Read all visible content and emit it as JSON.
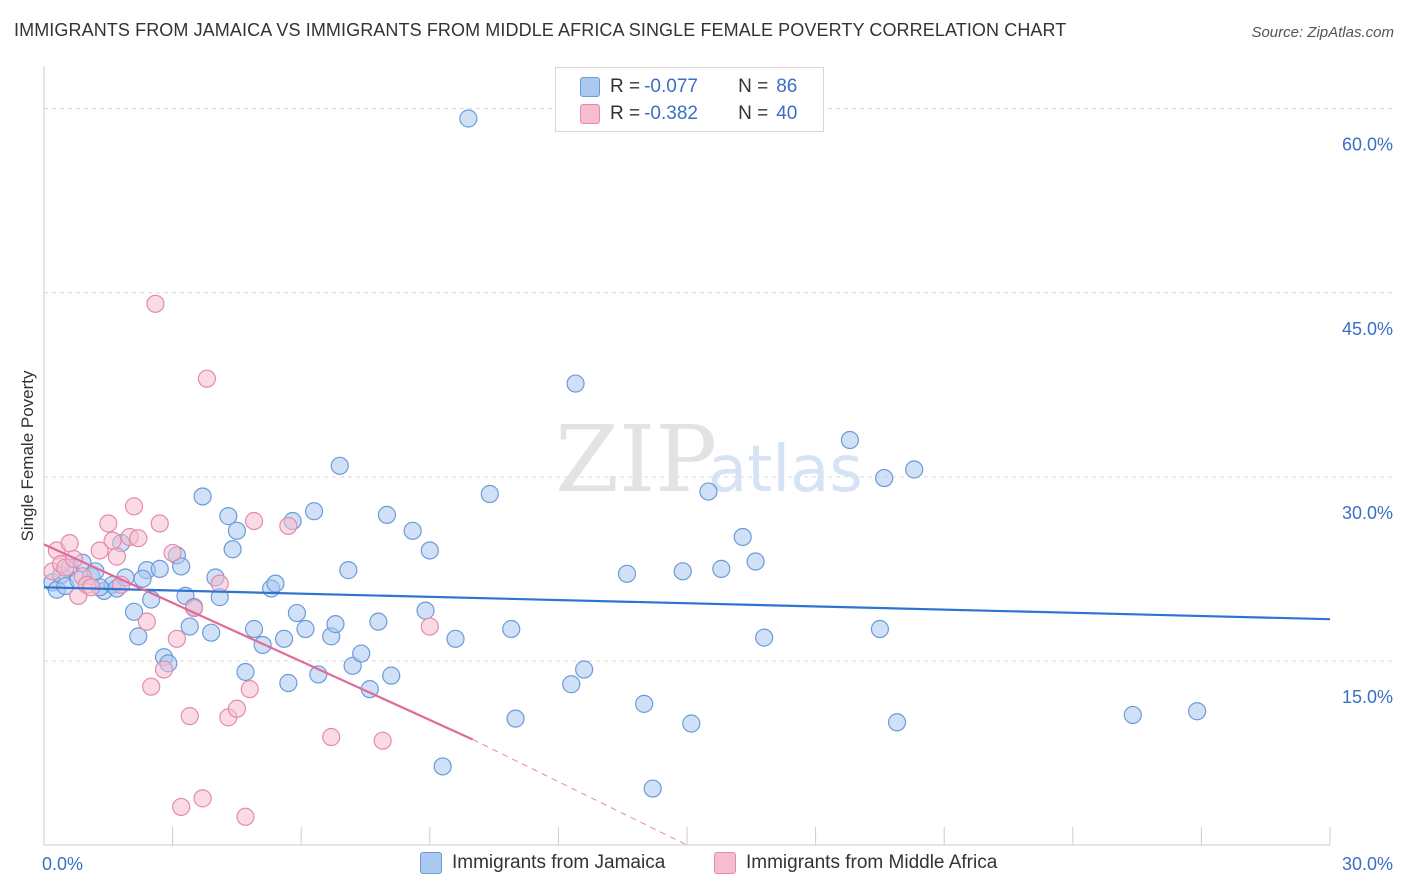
{
  "title": "IMMIGRANTS FROM JAMAICA VS IMMIGRANTS FROM MIDDLE AFRICA SINGLE FEMALE POVERTY CORRELATION CHART",
  "source": "Source: ZipAtlas.com",
  "watermark": {
    "zip": "ZIP",
    "atlas": "atlas"
  },
  "legend": {
    "series": [
      {
        "r_label": "R =",
        "r_value": "-0.077",
        "n_label": "N =",
        "n_value": "86"
      },
      {
        "r_label": "R =",
        "r_value": "-0.382",
        "n_label": "N =",
        "n_value": "40"
      }
    ]
  },
  "bottom_legend": [
    "Immigrants from Jamaica",
    "Immigrants from Middle Africa"
  ],
  "colors": {
    "jamaica_fill": "#aac8f0",
    "jamaica_stroke": "#6b9bd9",
    "jamaica_line": "#2e74d0",
    "africa_fill": "#f6bdd0",
    "africa_stroke": "#e68aab",
    "africa_line": "#e06a98",
    "axis_text": "#3a6fc6",
    "grid": "#d9d9d9"
  },
  "chart_data": {
    "type": "scatter",
    "title": "IMMIGRANTS FROM JAMAICA VS IMMIGRANTS FROM MIDDLE AFRICA SINGLE FEMALE POVERTY CORRELATION CHART",
    "xlabel": "",
    "ylabel": "Single Female Poverty",
    "xlim": [
      0,
      30
    ],
    "ylim": [
      0,
      62.5
    ],
    "x_tick_labels": [
      {
        "value": 0,
        "label": "0.0%"
      },
      {
        "value": 30,
        "label": "30.0%"
      }
    ],
    "y_tick_labels": [
      {
        "value": 15,
        "label": "15.0%"
      },
      {
        "value": 30,
        "label": "30.0%"
      },
      {
        "value": 45,
        "label": "45.0%"
      },
      {
        "value": 60,
        "label": "60.0%"
      }
    ],
    "grid": true,
    "legend_position": "top-center",
    "series": [
      {
        "name": "Immigrants from Jamaica",
        "points": [
          [
            0.2,
            21.4
          ],
          [
            0.3,
            20.8
          ],
          [
            0.4,
            22.0
          ],
          [
            0.5,
            21.1
          ],
          [
            0.6,
            22.6
          ],
          [
            0.8,
            21.6
          ],
          [
            0.9,
            23.0
          ],
          [
            1.1,
            21.9
          ],
          [
            1.2,
            22.3
          ],
          [
            1.4,
            20.7
          ],
          [
            1.6,
            21.2
          ],
          [
            1.7,
            20.9
          ],
          [
            1.8,
            24.6
          ],
          [
            1.9,
            21.8
          ],
          [
            2.1,
            19.0
          ],
          [
            2.2,
            17.0
          ],
          [
            2.4,
            22.4
          ],
          [
            2.5,
            20.0
          ],
          [
            2.7,
            22.5
          ],
          [
            2.8,
            15.3
          ],
          [
            2.9,
            14.8
          ],
          [
            3.1,
            23.6
          ],
          [
            3.2,
            22.7
          ],
          [
            3.3,
            20.3
          ],
          [
            3.4,
            17.8
          ],
          [
            3.5,
            19.4
          ],
          [
            3.7,
            28.4
          ],
          [
            3.9,
            17.3
          ],
          [
            4.0,
            21.8
          ],
          [
            4.1,
            20.2
          ],
          [
            4.3,
            26.8
          ],
          [
            4.4,
            24.1
          ],
          [
            4.5,
            25.6
          ],
          [
            4.7,
            14.1
          ],
          [
            4.9,
            17.6
          ],
          [
            5.1,
            16.3
          ],
          [
            5.3,
            20.9
          ],
          [
            5.4,
            21.3
          ],
          [
            5.6,
            16.8
          ],
          [
            5.7,
            13.2
          ],
          [
            5.8,
            26.4
          ],
          [
            5.9,
            18.9
          ],
          [
            6.1,
            17.6
          ],
          [
            6.3,
            27.2
          ],
          [
            6.4,
            13.9
          ],
          [
            6.7,
            17.0
          ],
          [
            6.8,
            18.0
          ],
          [
            6.9,
            30.9
          ],
          [
            7.1,
            22.4
          ],
          [
            7.2,
            14.6
          ],
          [
            7.4,
            15.6
          ],
          [
            7.6,
            12.7
          ],
          [
            7.8,
            18.2
          ],
          [
            8.0,
            26.9
          ],
          [
            8.1,
            13.8
          ],
          [
            8.6,
            25.6
          ],
          [
            8.9,
            19.1
          ],
          [
            9.0,
            24.0
          ],
          [
            9.3,
            6.4
          ],
          [
            9.6,
            16.8
          ],
          [
            9.9,
            59.2
          ],
          [
            10.4,
            28.6
          ],
          [
            10.9,
            17.6
          ],
          [
            11.0,
            10.3
          ],
          [
            12.3,
            13.1
          ],
          [
            12.4,
            37.6
          ],
          [
            12.6,
            14.3
          ],
          [
            13.6,
            22.1
          ],
          [
            14.0,
            11.5
          ],
          [
            14.2,
            4.6
          ],
          [
            14.9,
            22.3
          ],
          [
            15.1,
            9.9
          ],
          [
            15.5,
            28.8
          ],
          [
            15.8,
            22.5
          ],
          [
            16.3,
            25.1
          ],
          [
            16.6,
            23.1
          ],
          [
            16.8,
            16.9
          ],
          [
            18.8,
            33.0
          ],
          [
            19.5,
            17.6
          ],
          [
            19.6,
            29.9
          ],
          [
            19.9,
            10.0
          ],
          [
            20.3,
            30.6
          ],
          [
            25.4,
            10.6
          ],
          [
            26.9,
            10.9
          ],
          [
            1.3,
            21.0
          ],
          [
            2.3,
            21.7
          ]
        ],
        "trendline": {
          "x": [
            0,
            30
          ],
          "y": [
            21.0,
            18.4
          ]
        }
      },
      {
        "name": "Immigrants from Middle Africa",
        "points": [
          [
            0.2,
            22.3
          ],
          [
            0.3,
            24.0
          ],
          [
            0.4,
            22.9
          ],
          [
            0.5,
            22.6
          ],
          [
            0.6,
            24.6
          ],
          [
            0.7,
            23.3
          ],
          [
            0.8,
            20.3
          ],
          [
            0.9,
            21.9
          ],
          [
            1.0,
            21.2
          ],
          [
            1.1,
            21.0
          ],
          [
            1.3,
            24.0
          ],
          [
            1.5,
            26.2
          ],
          [
            1.6,
            24.8
          ],
          [
            1.7,
            23.5
          ],
          [
            1.8,
            21.2
          ],
          [
            2.0,
            25.1
          ],
          [
            2.1,
            27.6
          ],
          [
            2.2,
            25.0
          ],
          [
            2.4,
            18.2
          ],
          [
            2.5,
            12.9
          ],
          [
            2.6,
            44.1
          ],
          [
            2.7,
            26.2
          ],
          [
            2.8,
            14.3
          ],
          [
            3.0,
            23.8
          ],
          [
            3.1,
            16.8
          ],
          [
            3.2,
            3.1
          ],
          [
            3.4,
            10.5
          ],
          [
            3.5,
            19.3
          ],
          [
            3.7,
            3.8
          ],
          [
            3.8,
            38.0
          ],
          [
            4.1,
            21.3
          ],
          [
            4.3,
            10.4
          ],
          [
            4.5,
            11.1
          ],
          [
            4.7,
            2.3
          ],
          [
            4.8,
            12.7
          ],
          [
            4.9,
            26.4
          ],
          [
            5.7,
            26.0
          ],
          [
            6.7,
            8.8
          ],
          [
            7.9,
            8.5
          ],
          [
            9.0,
            17.8
          ]
        ],
        "trendline": {
          "x": [
            0,
            10.0
          ],
          "y": [
            24.5,
            8.6
          ]
        },
        "trendline_extension": {
          "x": [
            10.0,
            15.0
          ],
          "y": [
            8.6,
            0.0
          ]
        }
      }
    ]
  }
}
